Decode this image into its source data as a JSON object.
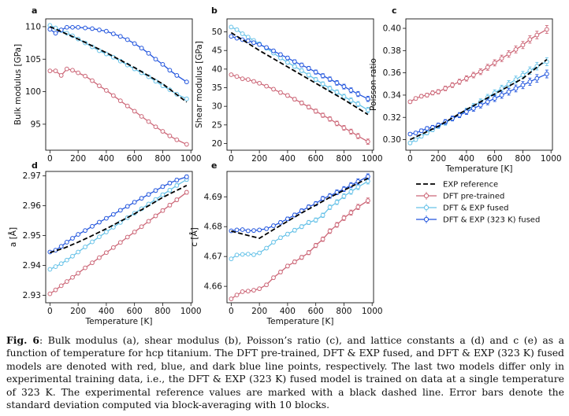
{
  "figure": {
    "caption_label": "Fig. 6",
    "caption_text": ": Bulk modulus (a), shear modulus (b), Poisson’s ratio (c), and lattice constants a (d) and c (e) as a function of temperature for hcp titanium. The DFT pre-trained, DFT & EXP fused, and DFT & EXP (323 K) fused models are denoted with red, blue, and dark blue line points, respectively. The last two models differ only in experimental training data, i.e., the DFT & EXP (323 K) fused model is trained on data at a single temperature of 323 K. The experimental reference values are marked with a black dashed line. Error bars denote the standard deviation computed via block-averaging with 10 blocks."
  },
  "colors": {
    "exp": "#000000",
    "pre": "#cc6677",
    "fused": "#66c2e8",
    "fused323": "#2255dd"
  },
  "legend": {
    "entries": [
      "EXP reference",
      "DFT pre-trained",
      "DFT & EXP fused",
      "DFT & EXP (323 K) fused"
    ]
  },
  "chart_data": [
    {
      "panel": "a",
      "type": "line",
      "xlabel": "",
      "ylabel": "Bulk modulus [GPa]",
      "xlim": [
        -30,
        1010
      ],
      "ylim": [
        91,
        111.2
      ],
      "xticks": [
        0,
        200,
        400,
        600,
        800,
        1000
      ],
      "yticks": [
        95,
        100,
        105,
        110
      ],
      "series": [
        {
          "name": "EXP reference",
          "style": "dashed",
          "x": [
            0,
            200,
            400,
            600,
            800,
            970
          ],
          "y": [
            110.0,
            108.1,
            106.0,
            103.7,
            101.2,
            98.4
          ]
        },
        {
          "name": "DFT pre-trained",
          "x": [
            0,
            40,
            80,
            120,
            160,
            200,
            250,
            300,
            350,
            400,
            450,
            500,
            550,
            600,
            650,
            700,
            750,
            800,
            850,
            900,
            970
          ],
          "y": [
            103.2,
            103.2,
            102.5,
            103.5,
            103.3,
            102.9,
            102.4,
            101.7,
            100.9,
            100.2,
            99.4,
            98.6,
            97.8,
            97.0,
            96.2,
            95.4,
            94.6,
            93.9,
            93.2,
            92.6,
            91.9
          ]
        },
        {
          "name": "DFT & EXP fused",
          "x": [
            0,
            40,
            80,
            120,
            160,
            200,
            250,
            300,
            350,
            400,
            450,
            500,
            550,
            600,
            650,
            700,
            750,
            800,
            850,
            900,
            970
          ],
          "y": [
            110.2,
            109.8,
            109.4,
            109.0,
            108.6,
            108.1,
            107.5,
            106.9,
            106.3,
            105.8,
            105.3,
            104.7,
            104.1,
            103.5,
            102.9,
            102.3,
            101.6,
            100.9,
            100.3,
            99.6,
            98.9
          ]
        },
        {
          "name": "DFT & EXP (323 K) fused",
          "x": [
            0,
            40,
            80,
            120,
            160,
            200,
            250,
            300,
            350,
            400,
            450,
            500,
            550,
            600,
            650,
            700,
            750,
            800,
            850,
            900,
            970
          ],
          "y": [
            109.6,
            109.0,
            109.5,
            109.9,
            109.9,
            109.9,
            109.8,
            109.7,
            109.5,
            109.3,
            108.9,
            108.5,
            108.0,
            107.4,
            106.7,
            105.9,
            105.0,
            104.2,
            103.3,
            102.5,
            101.5
          ]
        }
      ]
    },
    {
      "panel": "b",
      "type": "line",
      "xlabel": "",
      "ylabel": "Shear modulus [GPa]",
      "xlim": [
        -30,
        1010
      ],
      "ylim": [
        18.2,
        53.5
      ],
      "xticks": [
        0,
        200,
        400,
        600,
        800,
        1000
      ],
      "yticks": [
        20,
        25,
        30,
        35,
        40,
        45,
        50
      ],
      "series": [
        {
          "name": "EXP reference",
          "style": "dashed",
          "x": [
            0,
            200,
            400,
            600,
            800,
            970
          ],
          "y": [
            49.8,
            45.0,
            40.6,
            36.2,
            31.8,
            27.8
          ]
        },
        {
          "name": "DFT pre-trained",
          "x": [
            0,
            40,
            80,
            120,
            160,
            200,
            250,
            300,
            350,
            400,
            450,
            500,
            550,
            600,
            650,
            700,
            750,
            800,
            850,
            900,
            970
          ],
          "y": [
            38.5,
            38.0,
            37.4,
            37.2,
            36.7,
            36.2,
            35.4,
            34.6,
            33.7,
            32.9,
            31.9,
            30.9,
            29.8,
            28.7,
            27.6,
            26.6,
            25.4,
            24.2,
            23.2,
            22.0,
            20.5
          ]
        },
        {
          "name": "DFT & EXP fused",
          "x": [
            0,
            40,
            80,
            120,
            160,
            200,
            250,
            300,
            350,
            400,
            450,
            500,
            550,
            600,
            650,
            700,
            750,
            800,
            850,
            900,
            970
          ],
          "y": [
            51.3,
            50.6,
            49.5,
            48.6,
            47.7,
            46.8,
            45.6,
            44.3,
            43.0,
            41.8,
            40.7,
            39.6,
            38.4,
            37.2,
            36.0,
            34.8,
            33.8,
            32.6,
            31.6,
            30.6,
            29.0
          ]
        },
        {
          "name": "DFT & EXP (323 K) fused",
          "x": [
            0,
            40,
            80,
            120,
            160,
            200,
            250,
            300,
            350,
            400,
            450,
            500,
            550,
            600,
            650,
            700,
            750,
            800,
            850,
            900,
            970
          ],
          "y": [
            48.8,
            48.3,
            47.9,
            47.6,
            47.1,
            46.6,
            45.8,
            44.9,
            43.9,
            43.0,
            42.0,
            41.1,
            40.2,
            39.2,
            38.2,
            37.3,
            36.3,
            35.3,
            34.3,
            33.3,
            32.0
          ]
        }
      ]
    },
    {
      "panel": "c",
      "type": "line",
      "xlabel": "Temperature [K]",
      "ylabel": "Poisson ratio",
      "xlim": [
        -30,
        1010
      ],
      "ylim": [
        0.2905,
        0.4085
      ],
      "xticks": [
        0,
        200,
        400,
        600,
        800,
        1000
      ],
      "yticks": [
        0.3,
        0.32,
        0.34,
        0.36,
        0.38,
        0.4
      ],
      "series": [
        {
          "name": "EXP reference",
          "style": "dashed",
          "x": [
            0,
            200,
            400,
            600,
            800,
            970
          ],
          "y": [
            0.3,
            0.312,
            0.327,
            0.341,
            0.355,
            0.372
          ]
        },
        {
          "name": "DFT pre-trained",
          "x": [
            0,
            40,
            80,
            120,
            160,
            200,
            250,
            300,
            350,
            400,
            450,
            500,
            550,
            600,
            650,
            700,
            750,
            800,
            850,
            900,
            970
          ],
          "y": [
            0.334,
            0.337,
            0.339,
            0.34,
            0.342,
            0.343,
            0.346,
            0.349,
            0.352,
            0.355,
            0.358,
            0.361,
            0.365,
            0.369,
            0.373,
            0.377,
            0.381,
            0.385,
            0.39,
            0.394,
            0.399
          ]
        },
        {
          "name": "DFT & EXP fused",
          "x": [
            0,
            40,
            80,
            120,
            160,
            200,
            250,
            300,
            350,
            400,
            450,
            500,
            550,
            600,
            650,
            700,
            750,
            800,
            850,
            900,
            970
          ],
          "y": [
            0.297,
            0.3,
            0.303,
            0.306,
            0.309,
            0.312,
            0.315,
            0.319,
            0.322,
            0.326,
            0.33,
            0.334,
            0.338,
            0.342,
            0.346,
            0.35,
            0.354,
            0.358,
            0.362,
            0.366,
            0.37
          ]
        },
        {
          "name": "DFT & EXP (323 K) fused",
          "x": [
            0,
            40,
            80,
            120,
            160,
            200,
            250,
            300,
            350,
            400,
            450,
            500,
            550,
            600,
            650,
            700,
            750,
            800,
            850,
            900,
            970
          ],
          "y": [
            0.305,
            0.306,
            0.308,
            0.31,
            0.311,
            0.313,
            0.316,
            0.319,
            0.322,
            0.325,
            0.328,
            0.331,
            0.334,
            0.337,
            0.34,
            0.343,
            0.346,
            0.349,
            0.352,
            0.355,
            0.359
          ]
        }
      ]
    },
    {
      "panel": "d",
      "type": "line",
      "xlabel": "Temperature [K]",
      "ylabel": "a [Å]",
      "xlim": [
        -30,
        1010
      ],
      "ylim": [
        2.9275,
        2.9715
      ],
      "xticks": [
        0,
        200,
        400,
        600,
        800,
        1000
      ],
      "yticks": [
        2.93,
        2.94,
        2.95,
        2.96,
        2.97
      ],
      "series": [
        {
          "name": "EXP reference",
          "style": "dashed",
          "x": [
            0,
            100,
            200,
            300,
            400,
            500,
            600,
            700,
            800,
            970
          ],
          "y": [
            2.9443,
            2.9458,
            2.9478,
            2.95,
            2.9523,
            2.9548,
            2.9573,
            2.96,
            2.9628,
            2.9668
          ]
        },
        {
          "name": "DFT pre-trained",
          "x": [
            0,
            40,
            80,
            120,
            160,
            200,
            250,
            300,
            350,
            400,
            450,
            500,
            550,
            600,
            650,
            700,
            750,
            800,
            850,
            900,
            970
          ],
          "y": [
            2.9305,
            2.9318,
            2.9332,
            2.9346,
            2.936,
            2.9374,
            2.9392,
            2.9409,
            2.9426,
            2.9443,
            2.946,
            2.9477,
            2.9495,
            2.9512,
            2.953,
            2.9548,
            2.9566,
            2.9584,
            2.9602,
            2.962,
            2.9645
          ]
        },
        {
          "name": "DFT & EXP fused",
          "x": [
            0,
            40,
            80,
            120,
            160,
            200,
            250,
            300,
            350,
            400,
            450,
            500,
            550,
            600,
            650,
            700,
            750,
            800,
            850,
            900,
            970
          ],
          "y": [
            2.9387,
            2.9396,
            2.9406,
            2.9418,
            2.9431,
            2.9445,
            2.9462,
            2.9479,
            2.9496,
            2.9512,
            2.9528,
            2.9544,
            2.956,
            2.9575,
            2.959,
            2.9606,
            2.9621,
            2.9637,
            2.9652,
            2.9668,
            2.9688
          ]
        },
        {
          "name": "DFT & EXP (323 K) fused",
          "x": [
            0,
            40,
            80,
            120,
            160,
            200,
            250,
            300,
            350,
            400,
            450,
            500,
            550,
            600,
            650,
            700,
            750,
            800,
            850,
            900,
            970
          ],
          "y": [
            2.9445,
            2.9451,
            2.9464,
            2.9478,
            2.9491,
            2.9504,
            2.9517,
            2.9531,
            2.9545,
            2.9558,
            2.9571,
            2.9585,
            2.9598,
            2.9612,
            2.9625,
            2.9638,
            2.9651,
            2.9664,
            2.9676,
            2.9686,
            2.9697
          ]
        }
      ]
    },
    {
      "panel": "e",
      "type": "line",
      "xlabel": "Temperature [K]",
      "ylabel": "c [Å]",
      "xlim": [
        -30,
        1010
      ],
      "ylim": [
        4.6545,
        4.6985
      ],
      "xticks": [
        0,
        200,
        400,
        600,
        800,
        1000
      ],
      "yticks": [
        4.66,
        4.67,
        4.68,
        4.69
      ],
      "series": [
        {
          "name": "EXP reference",
          "style": "dashed",
          "x": [
            0,
            100,
            200,
            300,
            400,
            500,
            600,
            700,
            800,
            970
          ],
          "y": [
            4.6785,
            4.6773,
            4.6761,
            4.679,
            4.6818,
            4.6846,
            4.6872,
            4.6898,
            4.6922,
            4.6962
          ]
        },
        {
          "name": "DFT pre-trained",
          "x": [
            0,
            40,
            80,
            120,
            160,
            200,
            250,
            300,
            350,
            400,
            450,
            500,
            550,
            600,
            650,
            700,
            750,
            800,
            850,
            900,
            970
          ],
          "y": [
            4.6558,
            4.6571,
            4.6582,
            4.6584,
            4.6587,
            4.6592,
            4.6605,
            4.6629,
            4.6648,
            4.6668,
            4.6682,
            4.6697,
            4.6713,
            4.6737,
            4.6758,
            4.6785,
            4.6806,
            4.6829,
            4.6847,
            4.6866,
            4.6887
          ]
        },
        {
          "name": "DFT & EXP fused",
          "x": [
            0,
            40,
            80,
            120,
            160,
            200,
            250,
            300,
            350,
            400,
            450,
            500,
            550,
            600,
            650,
            700,
            750,
            800,
            850,
            900,
            970
          ],
          "y": [
            4.6692,
            4.6705,
            4.6707,
            4.6708,
            4.6706,
            4.6712,
            4.6728,
            4.6748,
            4.6763,
            4.6775,
            4.6788,
            4.68,
            4.6814,
            4.6822,
            4.6838,
            4.6865,
            4.6882,
            4.6902,
            4.6917,
            4.6933,
            4.6952
          ]
        },
        {
          "name": "DFT & EXP (323 K) fused",
          "x": [
            0,
            40,
            80,
            120,
            160,
            200,
            250,
            300,
            350,
            400,
            450,
            500,
            550,
            600,
            650,
            700,
            750,
            800,
            850,
            900,
            970
          ],
          "y": [
            4.6786,
            4.6789,
            4.679,
            4.6786,
            4.6787,
            4.6789,
            4.6793,
            4.6803,
            4.6814,
            4.6826,
            4.6839,
            4.6853,
            4.6866,
            4.6877,
            4.6894,
            4.6903,
            4.6915,
            4.6926,
            4.6939,
            4.6951,
            4.6968
          ]
        }
      ]
    }
  ]
}
